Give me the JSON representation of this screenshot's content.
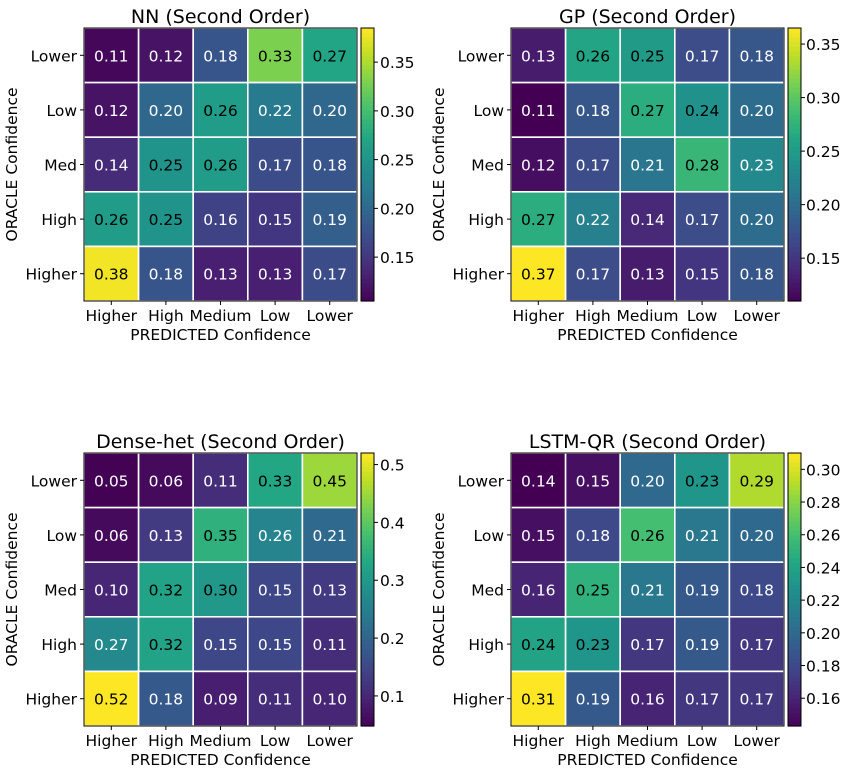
{
  "chart_data": [
    {
      "type": "heatmap",
      "title": "NN (Second Order)",
      "xlabel": "PREDICTED Confidence",
      "ylabel": "ORACLE Confidence",
      "x_categories": [
        "Higher",
        "High",
        "Medium",
        "Low",
        "Lower"
      ],
      "y_categories": [
        "Lower",
        "Low",
        "Med",
        "High",
        "Higher"
      ],
      "values": [
        [
          0.11,
          0.12,
          0.18,
          0.33,
          0.27
        ],
        [
          0.12,
          0.2,
          0.26,
          0.22,
          0.2
        ],
        [
          0.14,
          0.25,
          0.26,
          0.17,
          0.18
        ],
        [
          0.26,
          0.25,
          0.16,
          0.15,
          0.19
        ],
        [
          0.38,
          0.18,
          0.13,
          0.13,
          0.17
        ]
      ],
      "colorbar": {
        "min": 0.105,
        "max": 0.385,
        "ticks": [
          0.15,
          0.2,
          0.25,
          0.3,
          0.35
        ],
        "tick_labels": [
          "0.15",
          "0.20",
          "0.25",
          "0.30",
          "0.35"
        ]
      }
    },
    {
      "type": "heatmap",
      "title": "GP (Second Order)",
      "xlabel": "PREDICTED Confidence",
      "ylabel": "ORACLE Confidence",
      "x_categories": [
        "Higher",
        "High",
        "Medium",
        "Low",
        "Lower"
      ],
      "y_categories": [
        "Lower",
        "Low",
        "Med",
        "High",
        "Higher"
      ],
      "values": [
        [
          0.13,
          0.26,
          0.25,
          0.17,
          0.18
        ],
        [
          0.11,
          0.18,
          0.27,
          0.24,
          0.2
        ],
        [
          0.12,
          0.17,
          0.21,
          0.28,
          0.23
        ],
        [
          0.27,
          0.22,
          0.14,
          0.17,
          0.2
        ],
        [
          0.37,
          0.17,
          0.13,
          0.15,
          0.18
        ]
      ],
      "colorbar": {
        "min": 0.11,
        "max": 0.365,
        "ticks": [
          0.15,
          0.2,
          0.25,
          0.3,
          0.35
        ],
        "tick_labels": [
          "0.15",
          "0.20",
          "0.25",
          "0.30",
          "0.35"
        ]
      }
    },
    {
      "type": "heatmap",
      "title": "Dense-het (Second Order)",
      "xlabel": "PREDICTED Confidence",
      "ylabel": "ORACLE Confidence",
      "x_categories": [
        "Higher",
        "High",
        "Medium",
        "Low",
        "Lower"
      ],
      "y_categories": [
        "Lower",
        "Low",
        "Med",
        "High",
        "Higher"
      ],
      "values": [
        [
          0.05,
          0.06,
          0.11,
          0.33,
          0.45
        ],
        [
          0.06,
          0.13,
          0.35,
          0.26,
          0.21
        ],
        [
          0.1,
          0.32,
          0.3,
          0.15,
          0.13
        ],
        [
          0.27,
          0.32,
          0.15,
          0.15,
          0.11
        ],
        [
          0.52,
          0.18,
          0.09,
          0.11,
          0.1
        ]
      ],
      "colorbar": {
        "min": 0.048,
        "max": 0.52,
        "ticks": [
          0.1,
          0.2,
          0.3,
          0.4,
          0.5
        ],
        "tick_labels": [
          "0.1",
          "0.2",
          "0.3",
          "0.4",
          "0.5"
        ]
      }
    },
    {
      "type": "heatmap",
      "title": "LSTM-QR (Second Order)",
      "xlabel": "PREDICTED Confidence",
      "ylabel": "ORACLE Confidence",
      "x_categories": [
        "Higher",
        "High",
        "Medium",
        "Low",
        "Lower"
      ],
      "y_categories": [
        "Lower",
        "Low",
        "Med",
        "High",
        "Higher"
      ],
      "values": [
        [
          0.14,
          0.15,
          0.2,
          0.23,
          0.29
        ],
        [
          0.15,
          0.18,
          0.26,
          0.21,
          0.2
        ],
        [
          0.16,
          0.25,
          0.21,
          0.19,
          0.18
        ],
        [
          0.24,
          0.23,
          0.17,
          0.19,
          0.17
        ],
        [
          0.31,
          0.19,
          0.16,
          0.17,
          0.17
        ]
      ],
      "colorbar": {
        "min": 0.143,
        "max": 0.31,
        "ticks": [
          0.16,
          0.18,
          0.2,
          0.22,
          0.24,
          0.26,
          0.28,
          0.3
        ],
        "tick_labels": [
          "0.16",
          "0.18",
          "0.20",
          "0.22",
          "0.24",
          "0.26",
          "0.28",
          "0.30"
        ]
      }
    }
  ]
}
